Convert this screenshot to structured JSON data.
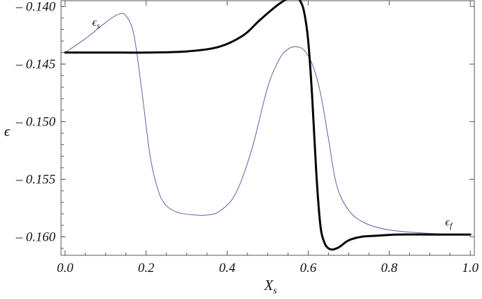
{
  "chart_data": {
    "type": "line",
    "xlabel": "X_s",
    "xlabel_main": "X",
    "xlabel_sub": "s",
    "ylabel": "ϵ",
    "xlim": [
      -0.01,
      1.01
    ],
    "ylim": [
      -0.1616,
      -0.1395
    ],
    "x_ticks": [
      0.0,
      0.2,
      0.4,
      0.6,
      0.8,
      1.0
    ],
    "x_tick_labels": [
      "0.0",
      "0.2",
      "0.4",
      "0.6",
      "0.8",
      "1.0"
    ],
    "y_ticks": [
      -0.14,
      -0.145,
      -0.15,
      -0.155,
      -0.16
    ],
    "y_tick_labels": [
      "– 0.140",
      "– 0.145",
      "– 0.150",
      "– 0.155",
      "– 0.160"
    ],
    "grid": false,
    "series": [
      {
        "name": "ϵs",
        "label_main": "ϵ",
        "label_sub": "s",
        "color": "#5b5ea6",
        "width": 1,
        "x": [
          0.0,
          0.05,
          0.1,
          0.13,
          0.15,
          0.17,
          0.19,
          0.21,
          0.23,
          0.25,
          0.28,
          0.32,
          0.35,
          0.38,
          0.42,
          0.46,
          0.5,
          0.53,
          0.55,
          0.57,
          0.59,
          0.61,
          0.63,
          0.65,
          0.67,
          0.7,
          0.74,
          0.8,
          0.9,
          1.0
        ],
        "y": [
          -0.144,
          -0.1428,
          -0.1414,
          -0.1407,
          -0.1408,
          -0.1425,
          -0.1475,
          -0.153,
          -0.156,
          -0.1573,
          -0.1579,
          -0.1581,
          -0.1581,
          -0.1578,
          -0.1563,
          -0.1525,
          -0.147,
          -0.1445,
          -0.1437,
          -0.1435,
          -0.1438,
          -0.145,
          -0.1475,
          -0.1515,
          -0.1555,
          -0.1577,
          -0.1588,
          -0.1594,
          -0.1597,
          -0.1598
        ]
      },
      {
        "name": "ϵf",
        "label_main": "ϵ",
        "label_sub": "f",
        "color": "#000000",
        "width": 3,
        "x": [
          0.0,
          0.1,
          0.2,
          0.3,
          0.38,
          0.44,
          0.48,
          0.52,
          0.55,
          0.57,
          0.58,
          0.59,
          0.6,
          0.61,
          0.62,
          0.63,
          0.64,
          0.65,
          0.66,
          0.67,
          0.68,
          0.7,
          0.73,
          0.77,
          0.82,
          0.9,
          1.0
        ],
        "y": [
          -0.144,
          -0.144,
          -0.144,
          -0.1439,
          -0.1435,
          -0.1425,
          -0.1412,
          -0.14,
          -0.1393,
          -0.1392,
          -0.1395,
          -0.1405,
          -0.143,
          -0.148,
          -0.1545,
          -0.159,
          -0.1605,
          -0.161,
          -0.1611,
          -0.161,
          -0.1608,
          -0.1603,
          -0.16,
          -0.1599,
          -0.1598,
          -0.1598,
          -0.1598
        ]
      }
    ],
    "annotations": [
      {
        "series": 0,
        "position": "upper-left"
      },
      {
        "series": 1,
        "position": "lower-right"
      }
    ]
  }
}
